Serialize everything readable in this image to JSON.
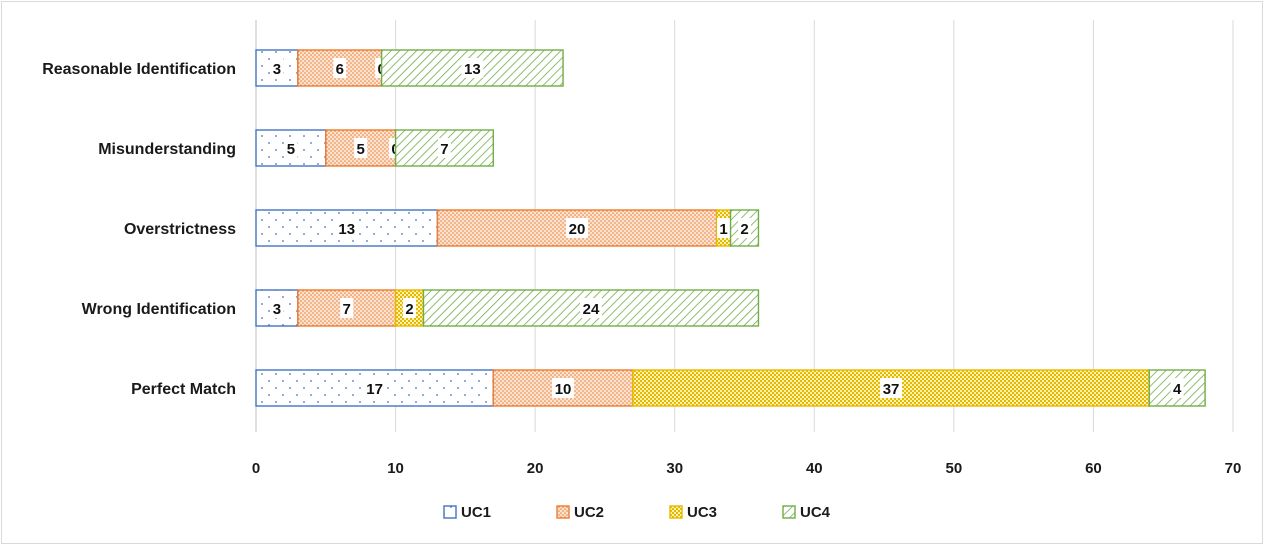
{
  "chart_data": {
    "type": "bar",
    "orientation": "horizontal",
    "stacked": true,
    "categories": [
      "Reasonable Identification",
      "Misunderstanding",
      "Overstrictness",
      "Wrong Identification",
      "Perfect Match"
    ],
    "series": [
      {
        "name": "UC1",
        "values": [
          3,
          5,
          13,
          3,
          17
        ],
        "color": "#4472c4",
        "pattern": "dots"
      },
      {
        "name": "UC2",
        "values": [
          6,
          5,
          20,
          7,
          10
        ],
        "color": "#ed7d31",
        "pattern": "dense-dots"
      },
      {
        "name": "UC3",
        "values": [
          0,
          0,
          1,
          2,
          37
        ],
        "color": "#e6b800",
        "pattern": "checker"
      },
      {
        "name": "UC4",
        "values": [
          13,
          7,
          2,
          24,
          4
        ],
        "color": "#70ad47",
        "pattern": "diagonal"
      }
    ],
    "xlim": [
      0,
      70
    ],
    "xticks": [
      0,
      10,
      20,
      30,
      40,
      50,
      60,
      70
    ],
    "grid": true,
    "legend_position": "bottom",
    "data_labels": true
  }
}
